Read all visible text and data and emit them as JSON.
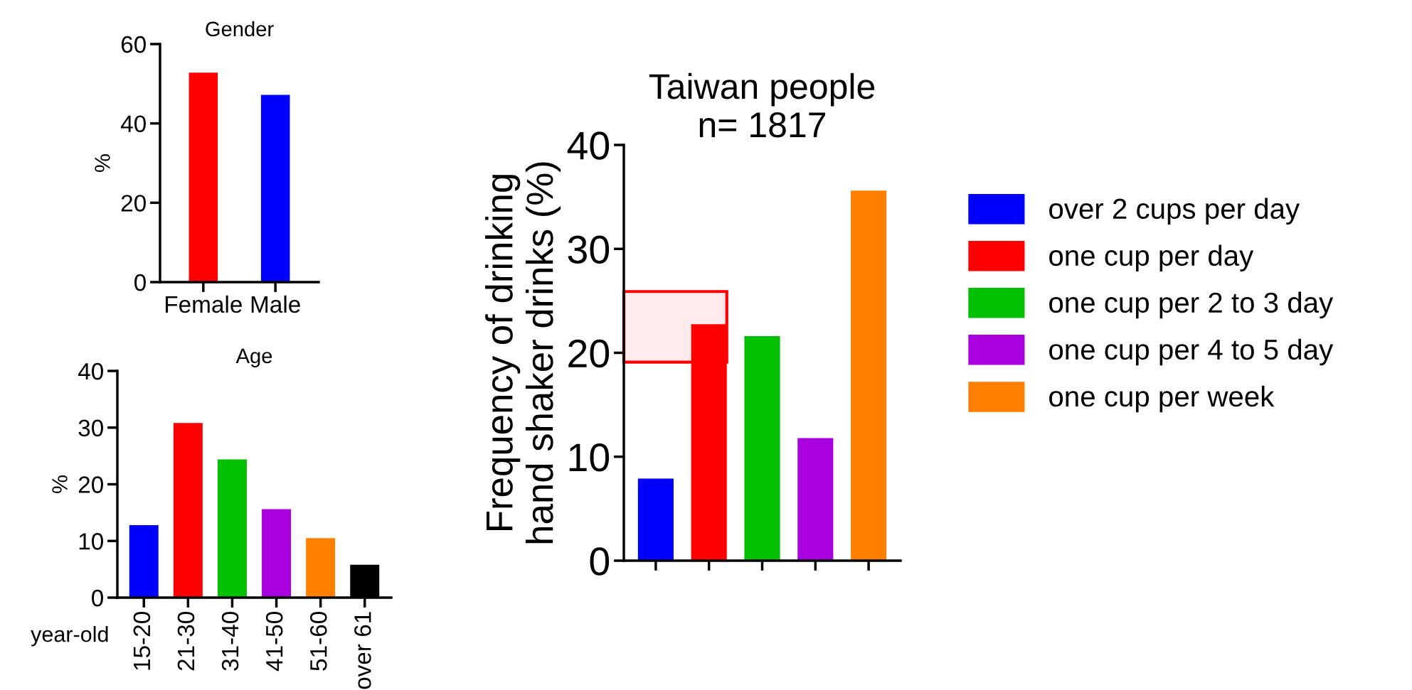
{
  "chart_data": [
    {
      "type": "bar",
      "title": "Gender",
      "ylabel": "%",
      "categories": [
        "Female",
        "Male"
      ],
      "values": [
        52.8,
        47.2
      ],
      "colors": [
        "#ff0000",
        "#0000ff"
      ],
      "ylim": [
        0,
        60
      ],
      "yticks": [
        0,
        20,
        40,
        60
      ],
      "grid": false,
      "legend": false
    },
    {
      "type": "bar",
      "title": "Age",
      "ylabel": "%",
      "xlabel": "year-old",
      "categories": [
        "15-20",
        "21-30",
        "31-40",
        "41-50",
        "51-60",
        "over 61"
      ],
      "values": [
        12.8,
        30.8,
        24.4,
        15.6,
        10.5,
        5.8
      ],
      "colors": [
        "#0000ff",
        "#ff0000",
        "#00c000",
        "#aa00e0",
        "#ff8000",
        "#000000"
      ],
      "ylim": [
        0,
        40
      ],
      "yticks": [
        0,
        10,
        20,
        30,
        40
      ],
      "grid": false,
      "legend": false
    },
    {
      "type": "bar",
      "title": "Taiwan people\nn= 1817",
      "ylabel": "Frequency of drinking\nhand shaker drinks (%)",
      "categories": [
        null,
        null,
        null,
        null,
        null
      ],
      "ylim": [
        0,
        40
      ],
      "yticks": [
        0,
        10,
        20,
        30,
        40
      ],
      "grid": false,
      "legend": "right",
      "series": [
        {
          "name": "over 2 cups per day",
          "color": "#0000ff",
          "values": [
            7.9,
            null,
            null,
            null,
            null
          ]
        },
        {
          "name": "one cup per day",
          "color": "#ff0000",
          "values": [
            null,
            22.75,
            null,
            null,
            null
          ]
        },
        {
          "name": "one cup per 2 to 3 day",
          "color": "#00c000",
          "values": [
            null,
            null,
            21.6,
            null,
            null
          ]
        },
        {
          "name": "one cup per 4 to 5 day",
          "color": "#aa00e0",
          "values": [
            null,
            null,
            null,
            11.8,
            null
          ]
        },
        {
          "name": "one cup per week",
          "color": "#ff8000",
          "values": [
            null,
            null,
            null,
            null,
            35.6
          ]
        }
      ],
      "bands": [
        {
          "axis": "y",
          "from": 19.1,
          "to": 25.9,
          "color": "#ff0000"
        }
      ]
    }
  ]
}
